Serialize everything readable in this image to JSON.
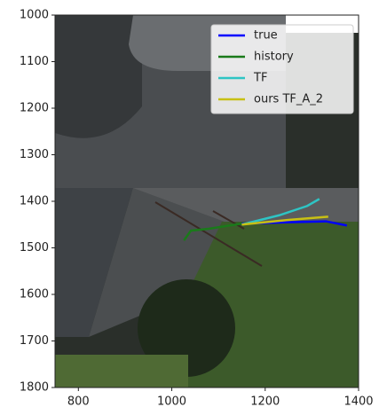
{
  "chart_data": {
    "type": "line",
    "xlim": [
      750,
      1400
    ],
    "xticks": [
      800,
      1000,
      1200,
      1400
    ],
    "ylim": [
      1800,
      1000
    ],
    "yticks": [
      1000,
      1100,
      1200,
      1300,
      1400,
      1500,
      1600,
      1700,
      1800
    ],
    "legend": "upper right",
    "series": [
      {
        "name": "true",
        "color": "#0000ff",
        "x": [
          1150,
          1250,
          1330,
          1375
        ],
        "values": [
          1448,
          1445,
          1443,
          1452
        ]
      },
      {
        "name": "history",
        "color": "#1a7a1a",
        "x": [
          1026,
          1041,
          1079,
          1117,
          1150
        ],
        "values": [
          1484,
          1463,
          1459,
          1453,
          1448
        ]
      },
      {
        "name": "TF",
        "color": "#2ec4c4",
        "x": [
          1150,
          1230,
          1290,
          1316
        ],
        "values": [
          1450,
          1430,
          1410,
          1395
        ]
      },
      {
        "name": "ours TF_A_2",
        "color": "#c8c014",
        "x": [
          1150,
          1250,
          1335
        ],
        "values": [
          1450,
          1440,
          1433
        ]
      }
    ]
  }
}
